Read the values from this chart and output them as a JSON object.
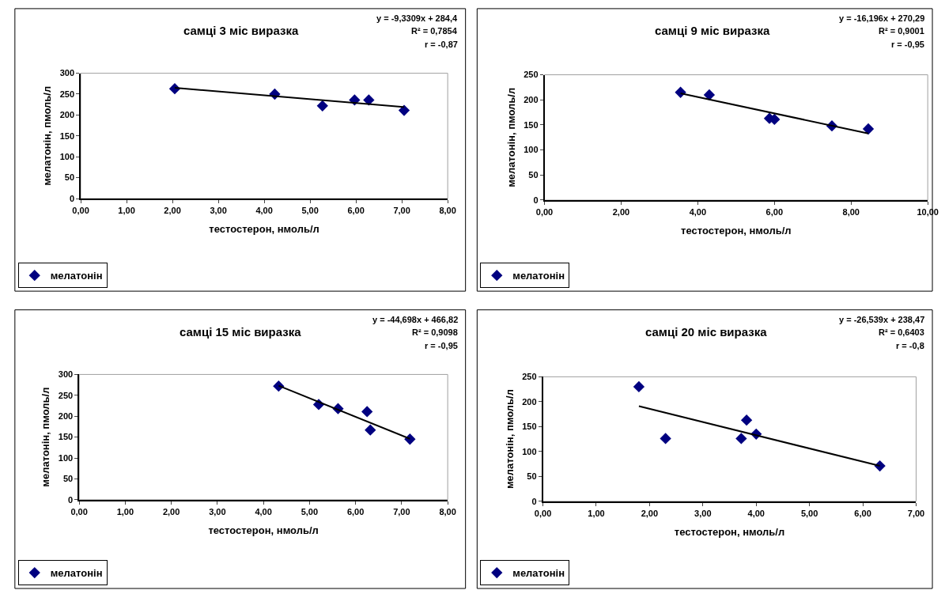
{
  "chart_data": [
    {
      "type": "scatter",
      "title": "самці 3 міс виразка",
      "xlabel": "тестостерон, нмоль/л",
      "ylabel": "мелатонін, пмоль/л",
      "annotations": [
        "y = -9,3309x + 284,4",
        "R² = 0,7854",
        "r = -0,87"
      ],
      "xlim": [
        0,
        8
      ],
      "xticks": [
        {
          "value": 0,
          "label": "0,00"
        },
        {
          "value": 1,
          "label": "1,00"
        },
        {
          "value": 2,
          "label": "2,00"
        },
        {
          "value": 3,
          "label": "3,00"
        },
        {
          "value": 4,
          "label": "4,00"
        },
        {
          "value": 5,
          "label": "5,00"
        },
        {
          "value": 6,
          "label": "6,00"
        },
        {
          "value": 7,
          "label": "7,00"
        },
        {
          "value": 8,
          "label": "8,00"
        }
      ],
      "ylim": [
        0,
        300
      ],
      "yticks": [
        0,
        50,
        100,
        150,
        200,
        250,
        300
      ],
      "grid": false,
      "legend": "bottom left",
      "series": [
        {
          "name": "мелатонін",
          "marker": "diamond",
          "color": "#000080",
          "x": [
            2.05,
            4.23,
            5.27,
            5.97,
            6.28,
            7.05
          ],
          "values": [
            263,
            250,
            222,
            236,
            236,
            211
          ]
        },
        {
          "type": "line",
          "marker": "none",
          "line_style": "solid",
          "color": "#000000",
          "x": [
            2.05,
            7.05
          ],
          "values": [
            265,
            219
          ]
        }
      ]
    },
    {
      "type": "scatter",
      "title": "самці 9 міс виразка",
      "xlabel": "тестостерон, нмоль/л",
      "ylabel": "мелатонін, пмоль/л",
      "annotations": [
        "y = -16,196x + 270,29",
        "R² = 0,9001",
        "r = -0,95"
      ],
      "xlim": [
        0,
        10
      ],
      "xticks": [
        {
          "value": 0,
          "label": "0,00"
        },
        {
          "value": 2,
          "label": "2,00"
        },
        {
          "value": 4,
          "label": "4,00"
        },
        {
          "value": 6,
          "label": "6,00"
        },
        {
          "value": 8,
          "label": "8,00"
        },
        {
          "value": 10,
          "label": "10,00"
        }
      ],
      "ylim": [
        0,
        250
      ],
      "yticks": [
        0,
        50,
        100,
        150,
        200,
        250
      ],
      "grid": false,
      "legend": "bottom left",
      "series": [
        {
          "name": "мелатонін",
          "marker": "diamond",
          "color": "#000080",
          "x": [
            3.55,
            4.3,
            5.87,
            6.0,
            7.5,
            8.45
          ],
          "values": [
            215,
            210,
            163,
            161,
            148,
            142
          ]
        },
        {
          "type": "line",
          "marker": "none",
          "line_style": "solid",
          "color": "#000000",
          "x": [
            3.55,
            8.45
          ],
          "values": [
            213,
            133
          ]
        }
      ]
    },
    {
      "type": "scatter",
      "title": "самці 15 міс виразка",
      "xlabel": "тестостерон, нмоль/л",
      "ylabel": "мелатонін, пмоль/л",
      "annotations": [
        "y = -44,698x + 466,82",
        "R² = 0,9098",
        "r = -0,95"
      ],
      "xlim": [
        0,
        8
      ],
      "xticks": [
        {
          "value": 0,
          "label": "0,00"
        },
        {
          "value": 1,
          "label": "1,00"
        },
        {
          "value": 2,
          "label": "2,00"
        },
        {
          "value": 3,
          "label": "3,00"
        },
        {
          "value": 4,
          "label": "4,00"
        },
        {
          "value": 5,
          "label": "5,00"
        },
        {
          "value": 6,
          "label": "6,00"
        },
        {
          "value": 7,
          "label": "7,00"
        },
        {
          "value": 8,
          "label": "8,00"
        }
      ],
      "ylim": [
        0,
        300
      ],
      "yticks": [
        0,
        50,
        100,
        150,
        200,
        250,
        300
      ],
      "grid": false,
      "legend": "bottom left",
      "series": [
        {
          "name": "мелатонін",
          "marker": "diamond",
          "color": "#000080",
          "x": [
            4.33,
            5.2,
            5.62,
            6.25,
            6.32,
            7.18
          ],
          "values": [
            272,
            228,
            218,
            211,
            167,
            145
          ]
        },
        {
          "type": "line",
          "marker": "none",
          "line_style": "solid",
          "color": "#000000",
          "x": [
            4.33,
            7.18
          ],
          "values": [
            273,
            146
          ]
        }
      ]
    },
    {
      "type": "scatter",
      "title": "самці 20 міс виразка",
      "xlabel": "тестостерон, нмоль/л",
      "ylabel": "мелатонін, пмоль/л",
      "annotations": [
        "y = -26,539x + 238,47",
        "R² = 0,6403",
        "r = -0,8"
      ],
      "xlim": [
        0,
        7
      ],
      "xticks": [
        {
          "value": 0,
          "label": "0,00"
        },
        {
          "value": 1,
          "label": "1,00"
        },
        {
          "value": 2,
          "label": "2,00"
        },
        {
          "value": 3,
          "label": "3,00"
        },
        {
          "value": 4,
          "label": "4,00"
        },
        {
          "value": 5,
          "label": "5,00"
        },
        {
          "value": 6,
          "label": "6,00"
        },
        {
          "value": 7,
          "label": "7,00"
        }
      ],
      "ylim": [
        0,
        250
      ],
      "yticks": [
        0,
        50,
        100,
        150,
        200,
        250
      ],
      "grid": false,
      "legend": "bottom left",
      "series": [
        {
          "name": "мелатонін",
          "marker": "diamond",
          "color": "#000080",
          "x": [
            1.8,
            2.3,
            3.72,
            3.82,
            4.0,
            6.32
          ],
          "values": [
            230,
            126,
            126,
            163,
            135,
            71
          ]
        },
        {
          "type": "line",
          "marker": "none",
          "line_style": "solid",
          "color": "#000000",
          "x": [
            1.8,
            6.32
          ],
          "values": [
            191,
            71
          ]
        }
      ]
    }
  ]
}
